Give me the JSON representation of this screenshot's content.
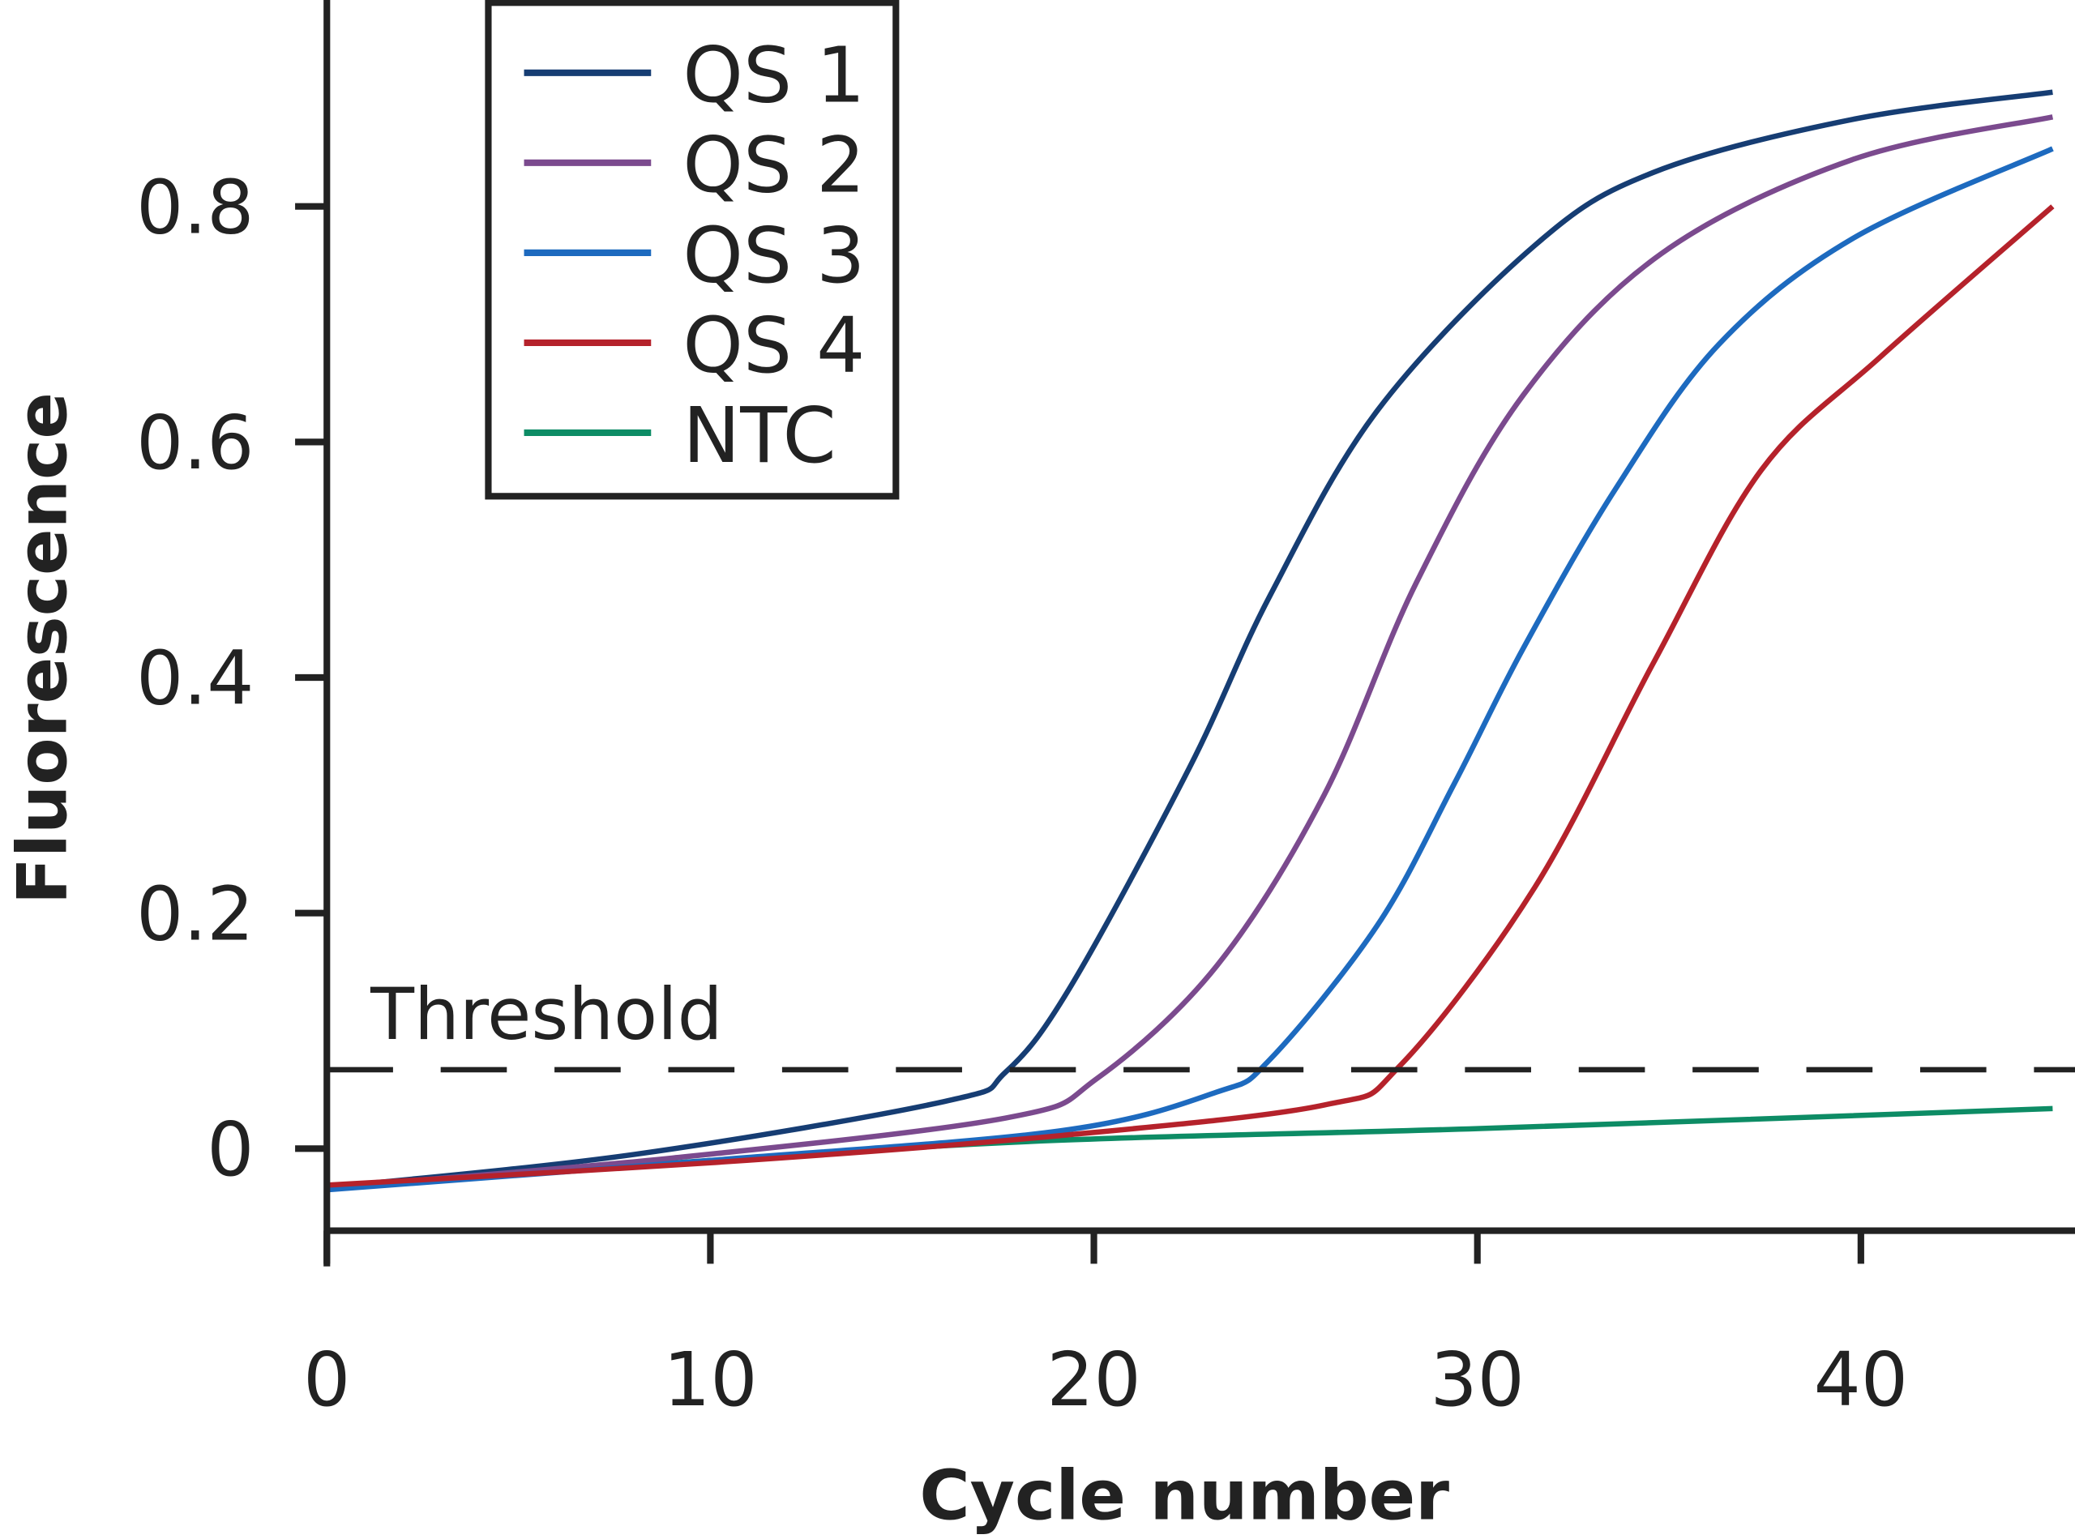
{
  "chart_data": {
    "type": "line",
    "title": "",
    "xlabel": "Cycle number",
    "ylabel": "Fluorescence",
    "xlim": [
      0,
      45
    ],
    "ylim": [
      -0.07,
      0.97
    ],
    "xticks": [
      0,
      10,
      20,
      30,
      40
    ],
    "xtick_labels": [
      "0",
      "10",
      "20",
      "30",
      "40"
    ],
    "yticks": [
      0,
      0.2,
      0.4,
      0.6,
      0.8
    ],
    "ytick_labels": [
      "0",
      "0.2",
      "0.4",
      "0.6",
      "0.8"
    ],
    "grid": false,
    "legend_position": "top-left",
    "threshold": {
      "label": "Threshold",
      "value": 0.067
    },
    "series": [
      {
        "name": "QS 1",
        "color": "#163d73",
        "x": [
          0,
          8,
          16.1,
          17.7,
          19.4,
          22.5,
          24.6,
          27.4,
          31.5,
          34.6,
          39.8,
          45
        ],
        "y": [
          -0.033,
          -0.005,
          0.04,
          0.065,
          0.138,
          0.324,
          0.47,
          0.627,
          0.767,
          0.829,
          0.874,
          0.897
        ]
      },
      {
        "name": "QS 2",
        "color": "#7b4a8e",
        "x": [
          0,
          9,
          17.7,
          20.1,
          23.2,
          26,
          28.4,
          31.2,
          34.8,
          39.8,
          45
        ],
        "y": [
          -0.033,
          -0.008,
          0.026,
          0.06,
          0.155,
          0.3,
          0.48,
          0.64,
          0.76,
          0.84,
          0.876
        ]
      },
      {
        "name": "QS 3",
        "color": "#1d6abf",
        "x": [
          0,
          10,
          19.1,
          23.2,
          24.6,
          27.4,
          29.4,
          31.2,
          33.6,
          36.3,
          39.8,
          45
        ],
        "y": [
          -0.035,
          -0.01,
          0.015,
          0.048,
          0.076,
          0.19,
          0.31,
          0.425,
          0.56,
          0.683,
          0.773,
          0.849
        ]
      },
      {
        "name": "QS 4",
        "color": "#b5222b",
        "x": [
          0,
          10,
          19.1,
          26,
          28,
          31.5,
          34.6,
          37.4,
          40.5,
          45
        ],
        "y": [
          -0.031,
          -0.012,
          0.011,
          0.037,
          0.071,
          0.222,
          0.413,
          0.576,
          0.672,
          0.8
        ]
      },
      {
        "name": "NTC",
        "color": "#0d8c65",
        "x": [
          0,
          10,
          19,
          30,
          45
        ],
        "y": [
          -0.033,
          -0.01,
          0.007,
          0.017,
          0.034
        ]
      }
    ]
  }
}
